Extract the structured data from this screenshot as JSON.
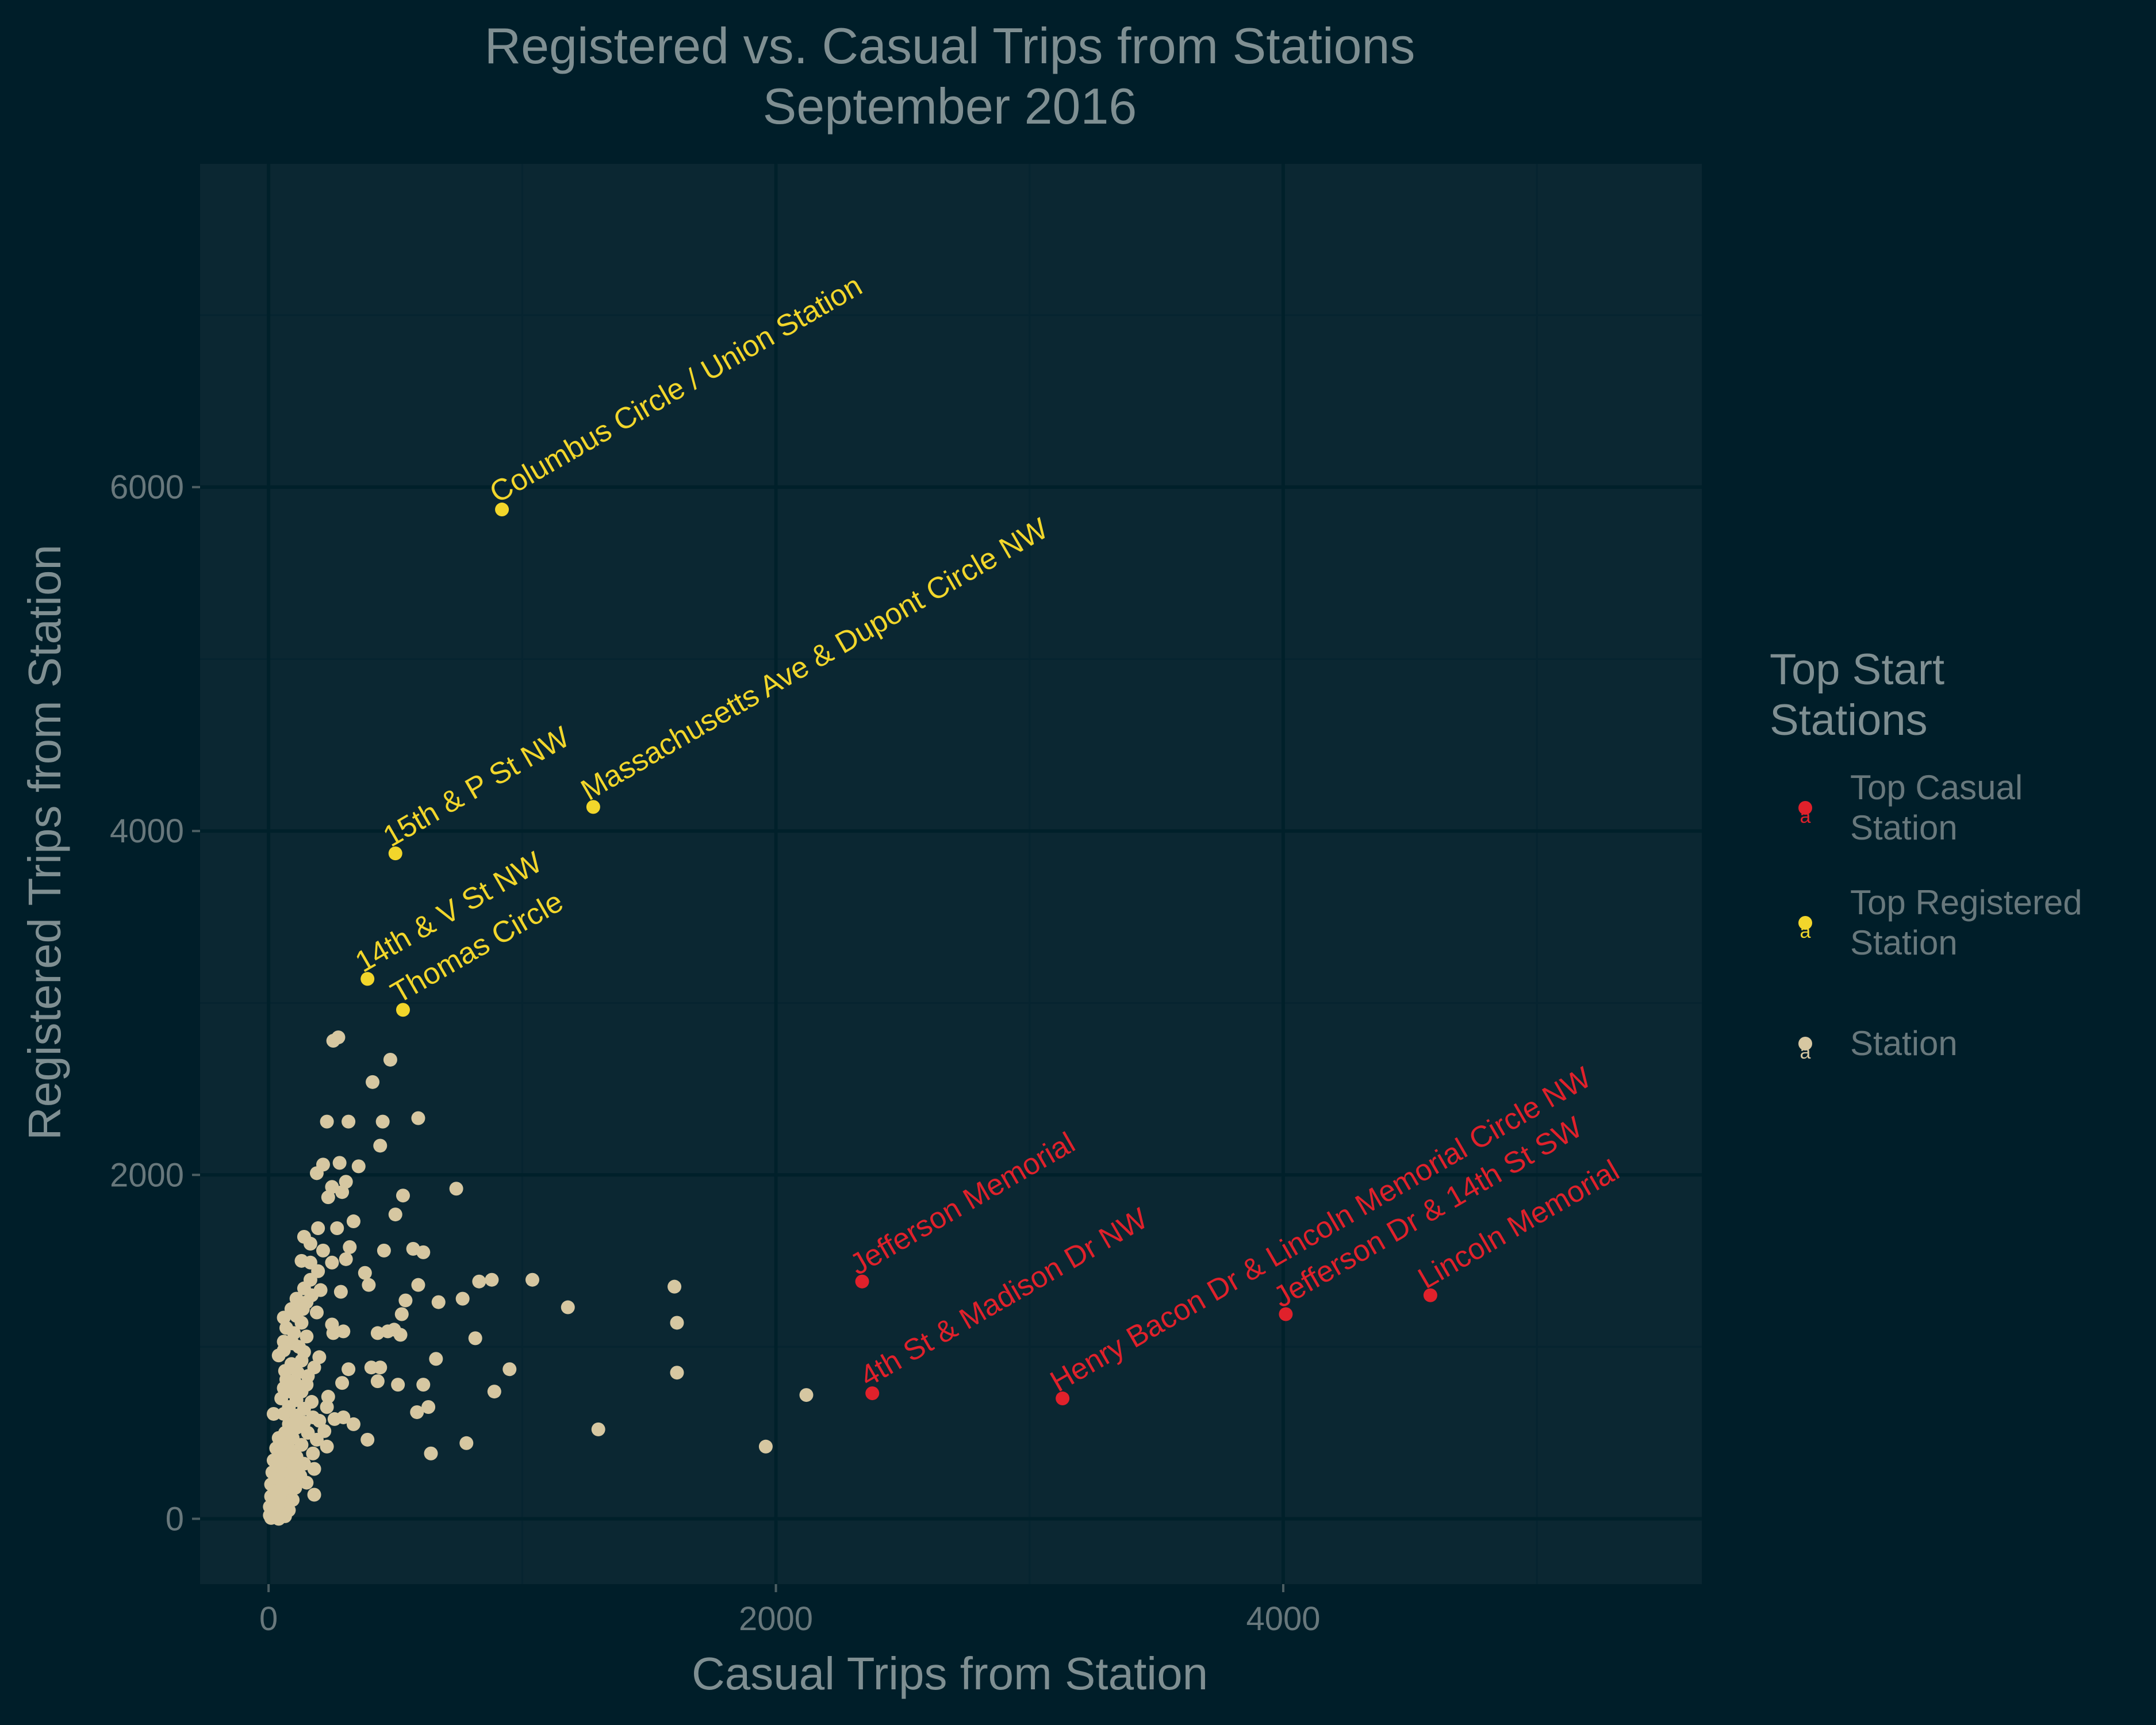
{
  "colors": {
    "background": "#001e29",
    "panel": "#0b2732",
    "grid_major": "#00202a",
    "grid_minor": "#062430",
    "top_casual": "#e0212b",
    "top_registered": "#f2d62b",
    "station": "#d6c7a1"
  },
  "chart_data": {
    "type": "scatter",
    "title": "Registered vs. Casual Trips from Stations",
    "subtitle": "September 2016",
    "xlabel": "Casual Trips from Station",
    "ylabel": "Registered Trips from Station",
    "xlim": [
      -270,
      5650
    ],
    "ylim": [
      -380,
      7880
    ],
    "x_ticks": [
      0,
      2000,
      4000
    ],
    "y_ticks": [
      0,
      2000,
      4000,
      6000
    ],
    "grid": true,
    "legend": {
      "title_lines": [
        "Top Start",
        "Stations"
      ],
      "position": "right",
      "entries": [
        {
          "key": "top_casual",
          "lines": [
            "Top Casual",
            "Station"
          ]
        },
        {
          "key": "top_registered",
          "lines": [
            "Top Registered",
            "Station"
          ]
        },
        {
          "key": "station",
          "lines": [
            "Station"
          ]
        }
      ]
    },
    "series": [
      {
        "key": "top_registered",
        "points": [
          {
            "x": 920,
            "y": 5870,
            "label": "Columbus Circle / Union Station"
          },
          {
            "x": 1280,
            "y": 4140,
            "label": "Massachusetts Ave & Dupont Circle NW"
          },
          {
            "x": 500,
            "y": 3870,
            "label": "15th & P St NW"
          },
          {
            "x": 390,
            "y": 3140,
            "label": "14th & V St NW"
          },
          {
            "x": 530,
            "y": 2960,
            "label": "Thomas Circle"
          }
        ]
      },
      {
        "key": "top_casual",
        "points": [
          {
            "x": 2340,
            "y": 1380,
            "label": "Jefferson Memorial"
          },
          {
            "x": 2380,
            "y": 730,
            "label": "4th St & Madison Dr NW"
          },
          {
            "x": 3130,
            "y": 700,
            "label": "Henry Bacon Dr & Lincoln Memorial Circle NW"
          },
          {
            "x": 4010,
            "y": 1190,
            "label": "Jefferson Dr & 14th St SW"
          },
          {
            "x": 4580,
            "y": 1300,
            "label": "Lincoln Memorial"
          }
        ]
      },
      {
        "key": "station",
        "points": [
          {
            "x": 255,
            "y": 2780
          },
          {
            "x": 275,
            "y": 2800
          },
          {
            "x": 480,
            "y": 2670
          },
          {
            "x": 410,
            "y": 2540
          },
          {
            "x": 590,
            "y": 2330
          },
          {
            "x": 230,
            "y": 2310
          },
          {
            "x": 315,
            "y": 2310
          },
          {
            "x": 450,
            "y": 2310
          },
          {
            "x": 440,
            "y": 2170
          },
          {
            "x": 215,
            "y": 2060
          },
          {
            "x": 280,
            "y": 2070
          },
          {
            "x": 355,
            "y": 2050
          },
          {
            "x": 190,
            "y": 2010
          },
          {
            "x": 305,
            "y": 1960
          },
          {
            "x": 250,
            "y": 1930
          },
          {
            "x": 290,
            "y": 1900
          },
          {
            "x": 740,
            "y": 1920
          },
          {
            "x": 530,
            "y": 1880
          },
          {
            "x": 235,
            "y": 1870
          },
          {
            "x": 500,
            "y": 1770
          },
          {
            "x": 195,
            "y": 1690
          },
          {
            "x": 270,
            "y": 1690
          },
          {
            "x": 335,
            "y": 1730
          },
          {
            "x": 140,
            "y": 1640
          },
          {
            "x": 165,
            "y": 1600
          },
          {
            "x": 215,
            "y": 1560
          },
          {
            "x": 320,
            "y": 1580
          },
          {
            "x": 455,
            "y": 1560
          },
          {
            "x": 570,
            "y": 1570
          },
          {
            "x": 610,
            "y": 1550
          },
          {
            "x": 130,
            "y": 1500
          },
          {
            "x": 165,
            "y": 1490
          },
          {
            "x": 250,
            "y": 1490
          },
          {
            "x": 305,
            "y": 1510
          },
          {
            "x": 195,
            "y": 1440
          },
          {
            "x": 380,
            "y": 1430
          },
          {
            "x": 165,
            "y": 1390
          },
          {
            "x": 830,
            "y": 1380
          },
          {
            "x": 880,
            "y": 1390
          },
          {
            "x": 1040,
            "y": 1390
          },
          {
            "x": 1600,
            "y": 1350
          },
          {
            "x": 395,
            "y": 1360
          },
          {
            "x": 590,
            "y": 1360
          },
          {
            "x": 140,
            "y": 1340
          },
          {
            "x": 205,
            "y": 1330
          },
          {
            "x": 285,
            "y": 1320
          },
          {
            "x": 110,
            "y": 1280
          },
          {
            "x": 150,
            "y": 1260
          },
          {
            "x": 170,
            "y": 1300
          },
          {
            "x": 540,
            "y": 1270
          },
          {
            "x": 670,
            "y": 1260
          },
          {
            "x": 765,
            "y": 1280
          },
          {
            "x": 1180,
            "y": 1230
          },
          {
            "x": 90,
            "y": 1220
          },
          {
            "x": 135,
            "y": 1220
          },
          {
            "x": 190,
            "y": 1200
          },
          {
            "x": 525,
            "y": 1190
          },
          {
            "x": 60,
            "y": 1170
          },
          {
            "x": 110,
            "y": 1180
          },
          {
            "x": 250,
            "y": 1130
          },
          {
            "x": 1610,
            "y": 1140
          },
          {
            "x": 130,
            "y": 1140
          },
          {
            "x": 70,
            "y": 1110
          },
          {
            "x": 100,
            "y": 1080
          },
          {
            "x": 255,
            "y": 1080
          },
          {
            "x": 295,
            "y": 1090
          },
          {
            "x": 430,
            "y": 1080
          },
          {
            "x": 470,
            "y": 1090
          },
          {
            "x": 495,
            "y": 1100
          },
          {
            "x": 520,
            "y": 1070
          },
          {
            "x": 815,
            "y": 1050
          },
          {
            "x": 150,
            "y": 1060
          },
          {
            "x": 60,
            "y": 1030
          },
          {
            "x": 95,
            "y": 1020
          },
          {
            "x": 120,
            "y": 1000
          },
          {
            "x": 660,
            "y": 930
          },
          {
            "x": 60,
            "y": 980
          },
          {
            "x": 140,
            "y": 970
          },
          {
            "x": 200,
            "y": 940
          },
          {
            "x": 40,
            "y": 950
          },
          {
            "x": 130,
            "y": 920
          },
          {
            "x": 90,
            "y": 900
          },
          {
            "x": 65,
            "y": 860
          },
          {
            "x": 115,
            "y": 850
          },
          {
            "x": 180,
            "y": 880
          },
          {
            "x": 950,
            "y": 870
          },
          {
            "x": 315,
            "y": 870
          },
          {
            "x": 1610,
            "y": 850
          },
          {
            "x": 405,
            "y": 880
          },
          {
            "x": 440,
            "y": 880
          },
          {
            "x": 155,
            "y": 830
          },
          {
            "x": 70,
            "y": 810
          },
          {
            "x": 105,
            "y": 790
          },
          {
            "x": 150,
            "y": 780
          },
          {
            "x": 290,
            "y": 790
          },
          {
            "x": 430,
            "y": 800
          },
          {
            "x": 510,
            "y": 780
          },
          {
            "x": 610,
            "y": 780
          },
          {
            "x": 60,
            "y": 760
          },
          {
            "x": 85,
            "y": 740
          },
          {
            "x": 130,
            "y": 740
          },
          {
            "x": 890,
            "y": 740
          },
          {
            "x": 2120,
            "y": 720
          },
          {
            "x": 235,
            "y": 710
          },
          {
            "x": 50,
            "y": 700
          },
          {
            "x": 110,
            "y": 690
          },
          {
            "x": 170,
            "y": 680
          },
          {
            "x": 80,
            "y": 650
          },
          {
            "x": 140,
            "y": 640
          },
          {
            "x": 230,
            "y": 650
          },
          {
            "x": 630,
            "y": 650
          },
          {
            "x": 585,
            "y": 620
          },
          {
            "x": 20,
            "y": 610
          },
          {
            "x": 60,
            "y": 610
          },
          {
            "x": 110,
            "y": 600
          },
          {
            "x": 175,
            "y": 590
          },
          {
            "x": 260,
            "y": 580
          },
          {
            "x": 295,
            "y": 590
          },
          {
            "x": 200,
            "y": 570
          },
          {
            "x": 140,
            "y": 560
          },
          {
            "x": 80,
            "y": 550
          },
          {
            "x": 110,
            "y": 530
          },
          {
            "x": 335,
            "y": 550
          },
          {
            "x": 1300,
            "y": 520
          },
          {
            "x": 65,
            "y": 500
          },
          {
            "x": 155,
            "y": 500
          },
          {
            "x": 220,
            "y": 510
          },
          {
            "x": 40,
            "y": 470
          },
          {
            "x": 95,
            "y": 470
          },
          {
            "x": 190,
            "y": 460
          },
          {
            "x": 390,
            "y": 460
          },
          {
            "x": 780,
            "y": 440
          },
          {
            "x": 1960,
            "y": 420
          },
          {
            "x": 60,
            "y": 440
          },
          {
            "x": 130,
            "y": 430
          },
          {
            "x": 230,
            "y": 420
          },
          {
            "x": 30,
            "y": 410
          },
          {
            "x": 85,
            "y": 400
          },
          {
            "x": 175,
            "y": 380
          },
          {
            "x": 640,
            "y": 380
          },
          {
            "x": 50,
            "y": 370
          },
          {
            "x": 110,
            "y": 360
          },
          {
            "x": 20,
            "y": 340
          },
          {
            "x": 75,
            "y": 330
          },
          {
            "x": 140,
            "y": 320
          },
          {
            "x": 40,
            "y": 300
          },
          {
            "x": 100,
            "y": 290
          },
          {
            "x": 180,
            "y": 290
          },
          {
            "x": 15,
            "y": 270
          },
          {
            "x": 60,
            "y": 260
          },
          {
            "x": 125,
            "y": 250
          },
          {
            "x": 30,
            "y": 230
          },
          {
            "x": 85,
            "y": 220
          },
          {
            "x": 150,
            "y": 210
          },
          {
            "x": 10,
            "y": 200
          },
          {
            "x": 55,
            "y": 190
          },
          {
            "x": 105,
            "y": 180
          },
          {
            "x": 25,
            "y": 160
          },
          {
            "x": 70,
            "y": 150
          },
          {
            "x": 180,
            "y": 140
          },
          {
            "x": 10,
            "y": 130
          },
          {
            "x": 45,
            "y": 120
          },
          {
            "x": 95,
            "y": 110
          },
          {
            "x": 20,
            "y": 90
          },
          {
            "x": 60,
            "y": 80
          },
          {
            "x": 5,
            "y": 70
          },
          {
            "x": 35,
            "y": 60
          },
          {
            "x": 80,
            "y": 50
          },
          {
            "x": 15,
            "y": 40
          },
          {
            "x": 50,
            "y": 30
          },
          {
            "x": 5,
            "y": 20
          },
          {
            "x": 25,
            "y": 10
          },
          {
            "x": 65,
            "y": 15
          },
          {
            "x": 10,
            "y": 5
          },
          {
            "x": 40,
            "y": 0
          }
        ]
      }
    ]
  }
}
